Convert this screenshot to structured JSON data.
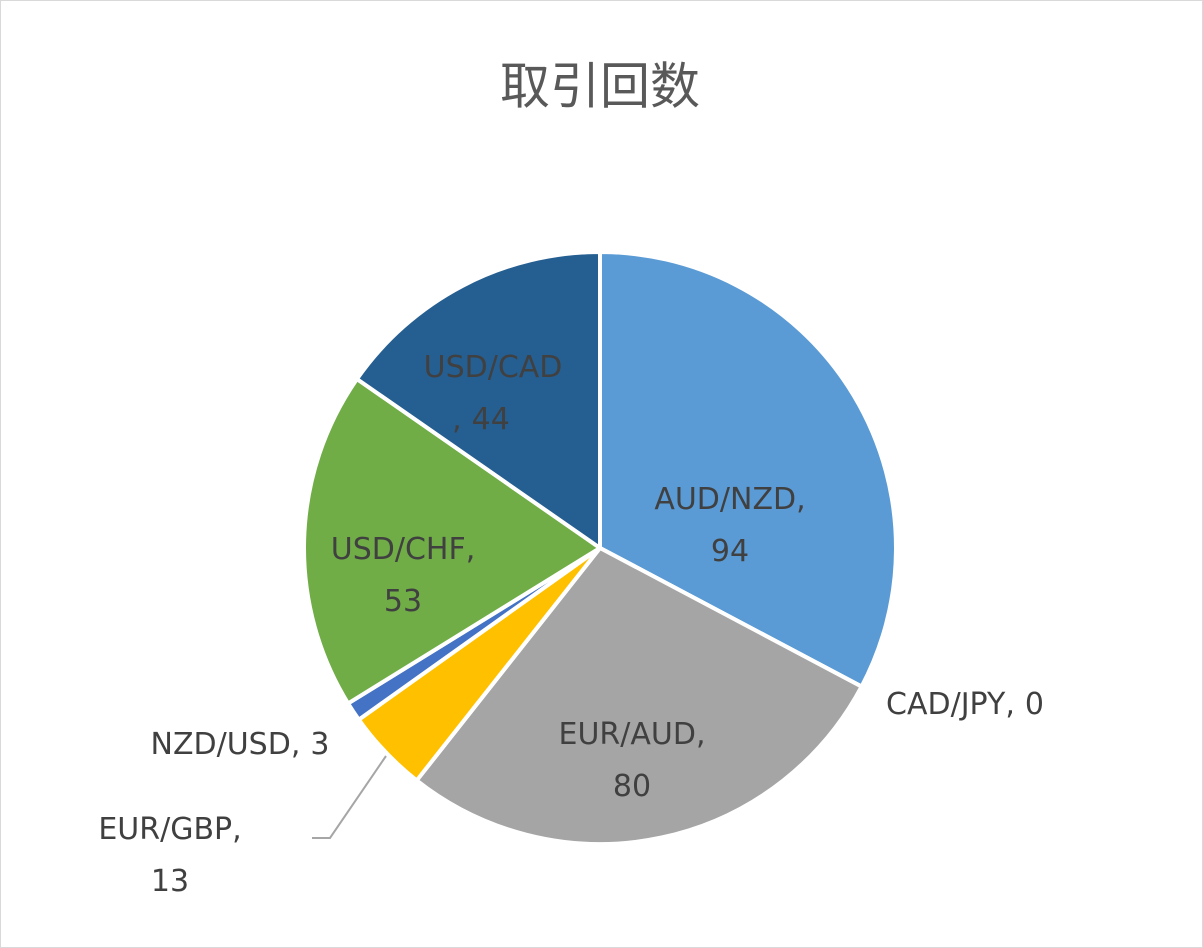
{
  "chart_data": {
    "type": "pie",
    "title": "取引回数",
    "categories": [
      "AUD/NZD",
      "CAD/JPY",
      "EUR/AUD",
      "EUR/GBP",
      "NZD/USD",
      "USD/CHF",
      "USD/CAD"
    ],
    "values": [
      94,
      0,
      80,
      13,
      3,
      53,
      44
    ],
    "colors": [
      "#5b9bd5",
      "#ed7d31",
      "#a5a5a5",
      "#ffc000",
      "#4472c4",
      "#70ad47",
      "#255e91"
    ],
    "label_separator": ","
  }
}
